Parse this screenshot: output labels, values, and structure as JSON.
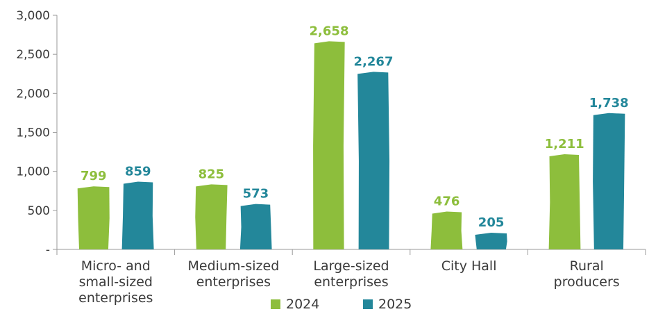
{
  "chart_data": {
    "type": "bar",
    "categories": [
      [
        "Micro- and",
        "small-sized",
        "enterprises"
      ],
      [
        "Medium-sized",
        "enterprises"
      ],
      [
        "Large-sized",
        "enterprises"
      ],
      [
        "City Hall"
      ],
      [
        "Rural",
        "producers"
      ]
    ],
    "series": [
      {
        "name": "2024",
        "color": "#8DBE3C",
        "values": [
          799,
          825,
          2658,
          476,
          1211
        ],
        "labels": [
          "799",
          "825",
          "2,658",
          "476",
          "1,211"
        ]
      },
      {
        "name": "2025",
        "color": "#23879A",
        "values": [
          859,
          573,
          2267,
          205,
          1738
        ],
        "labels": [
          "859",
          "573",
          "2,267",
          "205",
          "1,738"
        ]
      }
    ],
    "y_ticks": [
      {
        "value": 0,
        "label": "-"
      },
      {
        "value": 500,
        "label": "500"
      },
      {
        "value": 1000,
        "label": "1,000"
      },
      {
        "value": 1500,
        "label": "1,500"
      },
      {
        "value": 2000,
        "label": "2,000"
      },
      {
        "value": 2500,
        "label": "2,500"
      },
      {
        "value": 3000,
        "label": "3,000"
      }
    ],
    "ylim": [
      0,
      3000
    ],
    "grid": false,
    "legend_position": "bottom"
  }
}
